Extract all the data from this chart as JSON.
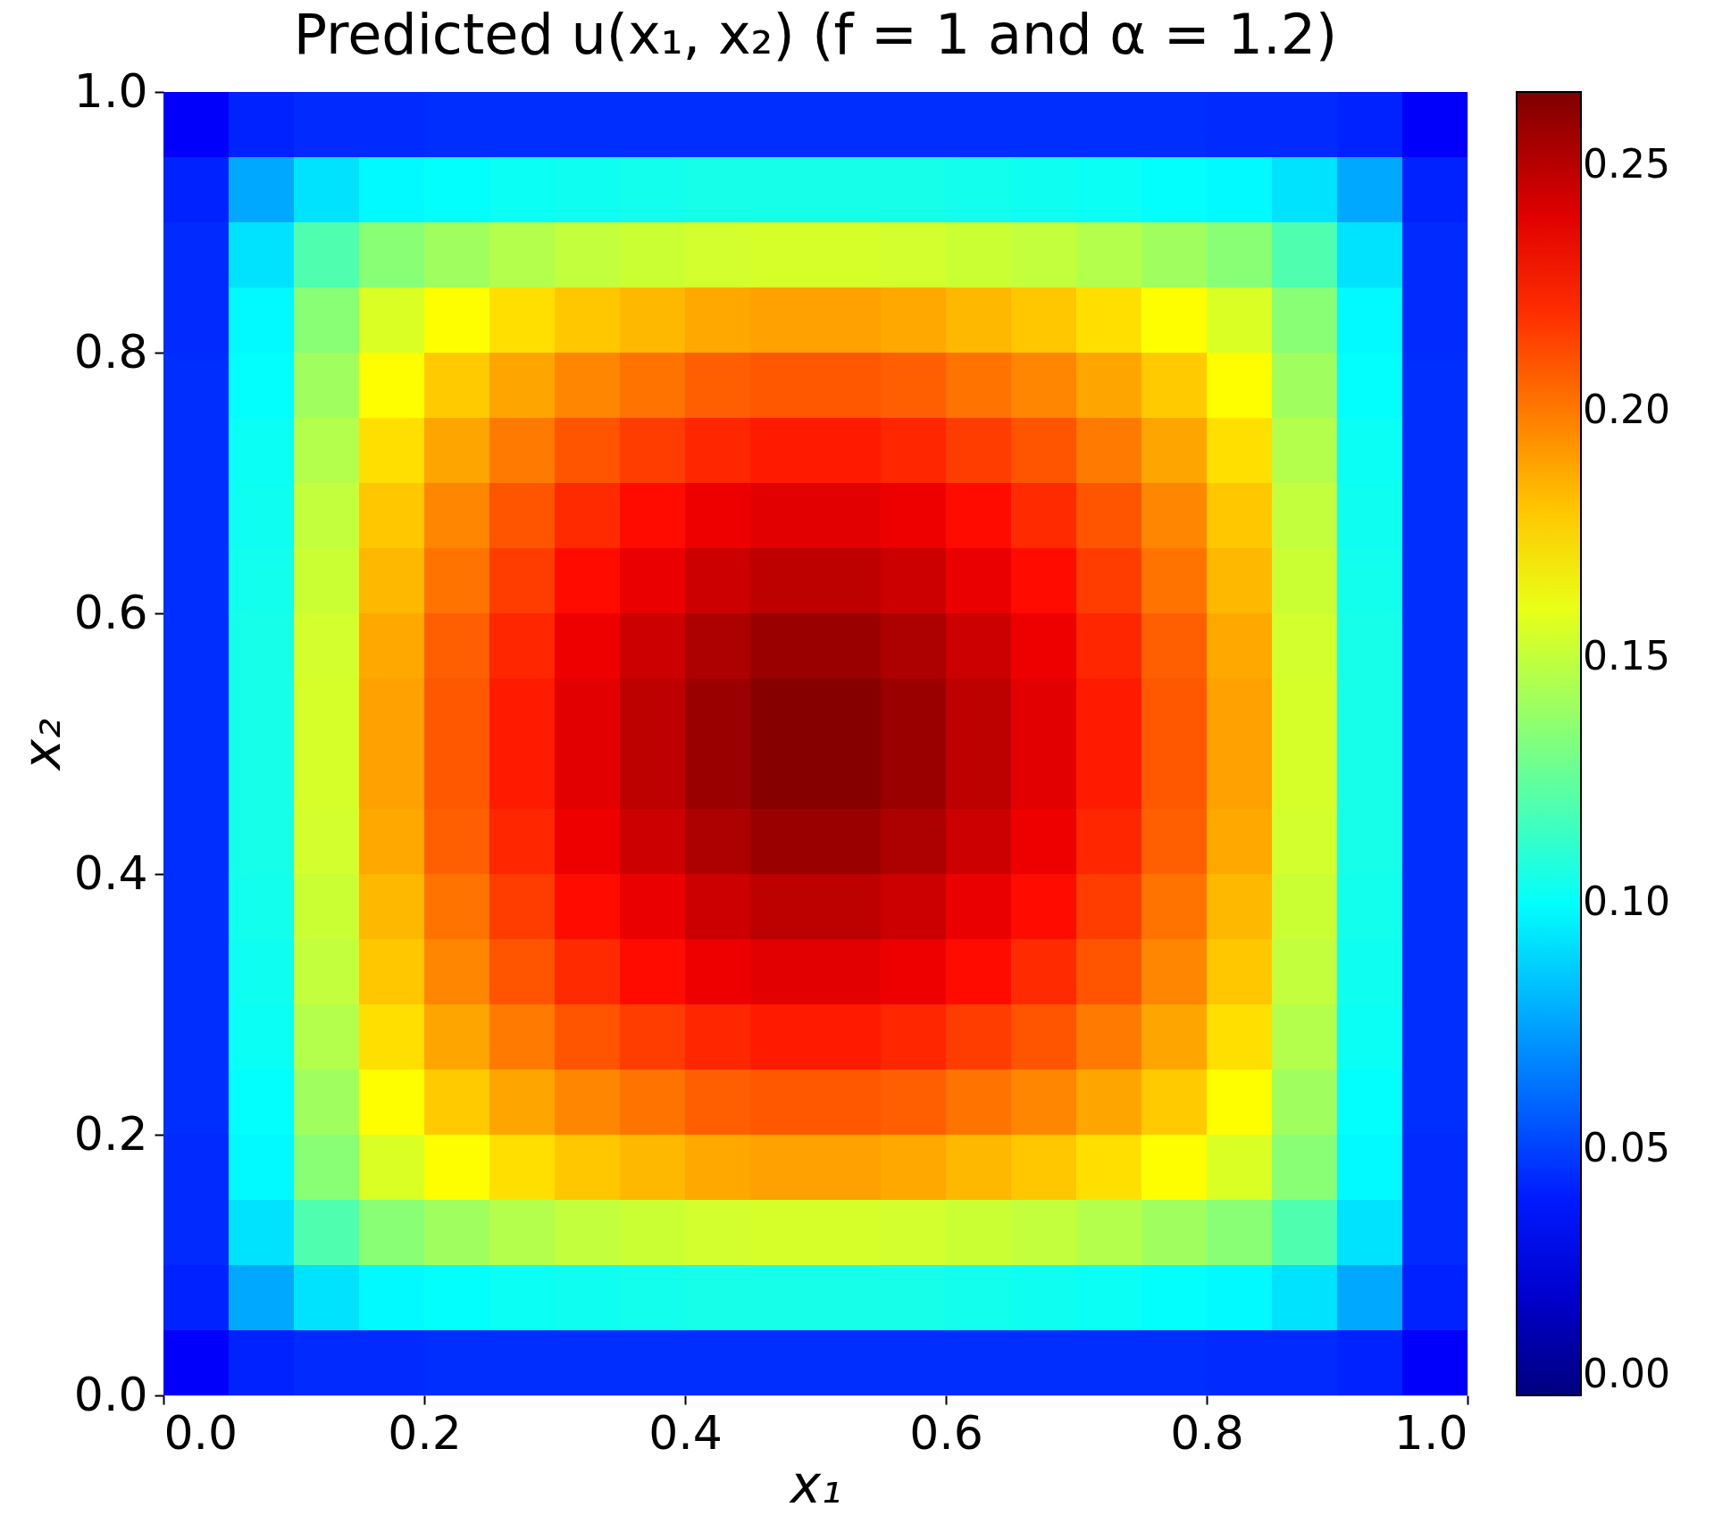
{
  "chart_data": {
    "type": "heatmap",
    "title": "Predicted u(x₁, x₂) (f = 1 and α = 1.2)",
    "xlabel": "x₁",
    "ylabel": "x₂",
    "x": [
      0.025,
      0.075,
      0.125,
      0.175,
      0.225,
      0.275,
      0.325,
      0.375,
      0.425,
      0.475,
      0.525,
      0.575,
      0.625,
      0.675,
      0.725,
      0.775,
      0.825,
      0.875,
      0.925,
      0.975
    ],
    "xlim": [
      0,
      1
    ],
    "ylim": [
      0,
      1
    ],
    "xticks": [
      {
        "value": 0,
        "label": "0.0"
      },
      0.2,
      0.4,
      0.6,
      0.8,
      {
        "value": 1,
        "label": "1.0"
      }
    ],
    "yticks": [
      {
        "value": 0,
        "label": "0.0"
      },
      0.2,
      0.4,
      0.6,
      0.8,
      {
        "value": 1,
        "label": "1.0"
      }
    ],
    "clim": [
      0,
      0.265
    ],
    "cticks": [
      {
        "value": 0,
        "label": "0.00"
      },
      {
        "value": 0.05,
        "label": "0.05"
      },
      {
        "value": 0.1,
        "label": "0.10"
      },
      {
        "value": 0.15,
        "label": "0.15"
      },
      {
        "value": 0.2,
        "label": "0.20"
      },
      {
        "value": 0.25,
        "label": "0.25"
      }
    ],
    "cells": [
      [
        0.032,
        0.042,
        0.044,
        0.044,
        0.045,
        0.045,
        0.045,
        0.045,
        0.045,
        0.045,
        0.045,
        0.045,
        0.045,
        0.045,
        0.045,
        0.045,
        0.044,
        0.044,
        0.042,
        0.032
      ],
      [
        0.042,
        0.077,
        0.092,
        0.098,
        0.1,
        0.102,
        0.103,
        0.104,
        0.105,
        0.105,
        0.105,
        0.105,
        0.104,
        0.103,
        0.102,
        0.1,
        0.098,
        0.092,
        0.077,
        0.042
      ],
      [
        0.044,
        0.092,
        0.12,
        0.135,
        0.141,
        0.146,
        0.15,
        0.152,
        0.154,
        0.155,
        0.155,
        0.154,
        0.152,
        0.15,
        0.146,
        0.141,
        0.135,
        0.12,
        0.092,
        0.044
      ],
      [
        0.044,
        0.098,
        0.135,
        0.156,
        0.166,
        0.174,
        0.18,
        0.184,
        0.188,
        0.19,
        0.19,
        0.188,
        0.184,
        0.18,
        0.174,
        0.166,
        0.156,
        0.135,
        0.098,
        0.044
      ],
      [
        0.045,
        0.1,
        0.141,
        0.166,
        0.179,
        0.189,
        0.197,
        0.202,
        0.207,
        0.209,
        0.209,
        0.207,
        0.202,
        0.197,
        0.189,
        0.179,
        0.166,
        0.141,
        0.1,
        0.045
      ],
      [
        0.045,
        0.102,
        0.146,
        0.174,
        0.189,
        0.2,
        0.21,
        0.216,
        0.222,
        0.225,
        0.225,
        0.222,
        0.216,
        0.21,
        0.2,
        0.189,
        0.174,
        0.146,
        0.102,
        0.045
      ],
      [
        0.045,
        0.103,
        0.15,
        0.18,
        0.197,
        0.21,
        0.221,
        0.229,
        0.236,
        0.239,
        0.239,
        0.236,
        0.229,
        0.221,
        0.21,
        0.197,
        0.18,
        0.15,
        0.103,
        0.045
      ],
      [
        0.045,
        0.104,
        0.152,
        0.184,
        0.202,
        0.216,
        0.229,
        0.237,
        0.245,
        0.249,
        0.249,
        0.245,
        0.237,
        0.229,
        0.216,
        0.202,
        0.184,
        0.152,
        0.104,
        0.045
      ],
      [
        0.045,
        0.105,
        0.154,
        0.188,
        0.207,
        0.222,
        0.236,
        0.245,
        0.253,
        0.258,
        0.258,
        0.253,
        0.245,
        0.236,
        0.222,
        0.207,
        0.188,
        0.154,
        0.105,
        0.045
      ],
      [
        0.045,
        0.105,
        0.155,
        0.19,
        0.209,
        0.225,
        0.239,
        0.249,
        0.258,
        0.263,
        0.263,
        0.258,
        0.249,
        0.239,
        0.225,
        0.209,
        0.19,
        0.155,
        0.105,
        0.045
      ],
      [
        0.045,
        0.105,
        0.155,
        0.19,
        0.209,
        0.225,
        0.239,
        0.249,
        0.258,
        0.263,
        0.263,
        0.258,
        0.249,
        0.239,
        0.225,
        0.209,
        0.19,
        0.155,
        0.105,
        0.045
      ],
      [
        0.045,
        0.105,
        0.154,
        0.188,
        0.207,
        0.222,
        0.236,
        0.245,
        0.253,
        0.258,
        0.258,
        0.253,
        0.245,
        0.236,
        0.222,
        0.207,
        0.188,
        0.154,
        0.105,
        0.045
      ],
      [
        0.045,
        0.104,
        0.152,
        0.184,
        0.202,
        0.216,
        0.229,
        0.237,
        0.245,
        0.249,
        0.249,
        0.245,
        0.237,
        0.229,
        0.216,
        0.202,
        0.184,
        0.152,
        0.104,
        0.045
      ],
      [
        0.045,
        0.103,
        0.15,
        0.18,
        0.197,
        0.21,
        0.221,
        0.229,
        0.236,
        0.239,
        0.239,
        0.236,
        0.229,
        0.221,
        0.21,
        0.197,
        0.18,
        0.15,
        0.103,
        0.045
      ],
      [
        0.045,
        0.102,
        0.146,
        0.174,
        0.189,
        0.2,
        0.21,
        0.216,
        0.222,
        0.225,
        0.225,
        0.222,
        0.216,
        0.21,
        0.2,
        0.189,
        0.174,
        0.146,
        0.102,
        0.045
      ],
      [
        0.045,
        0.1,
        0.141,
        0.166,
        0.179,
        0.189,
        0.197,
        0.202,
        0.207,
        0.209,
        0.209,
        0.207,
        0.202,
        0.197,
        0.189,
        0.179,
        0.166,
        0.141,
        0.1,
        0.045
      ],
      [
        0.044,
        0.098,
        0.135,
        0.156,
        0.166,
        0.174,
        0.18,
        0.184,
        0.188,
        0.19,
        0.19,
        0.188,
        0.184,
        0.18,
        0.174,
        0.166,
        0.156,
        0.135,
        0.098,
        0.044
      ],
      [
        0.044,
        0.092,
        0.12,
        0.135,
        0.141,
        0.146,
        0.15,
        0.152,
        0.154,
        0.155,
        0.155,
        0.154,
        0.152,
        0.15,
        0.146,
        0.141,
        0.135,
        0.12,
        0.092,
        0.044
      ],
      [
        0.042,
        0.077,
        0.092,
        0.098,
        0.1,
        0.102,
        0.103,
        0.104,
        0.105,
        0.105,
        0.105,
        0.105,
        0.104,
        0.103,
        0.102,
        0.1,
        0.098,
        0.092,
        0.077,
        0.042
      ],
      [
        0.032,
        0.042,
        0.044,
        0.044,
        0.045,
        0.045,
        0.045,
        0.045,
        0.045,
        0.045,
        0.045,
        0.045,
        0.045,
        0.045,
        0.045,
        0.045,
        0.044,
        0.044,
        0.042,
        0.032
      ]
    ]
  }
}
